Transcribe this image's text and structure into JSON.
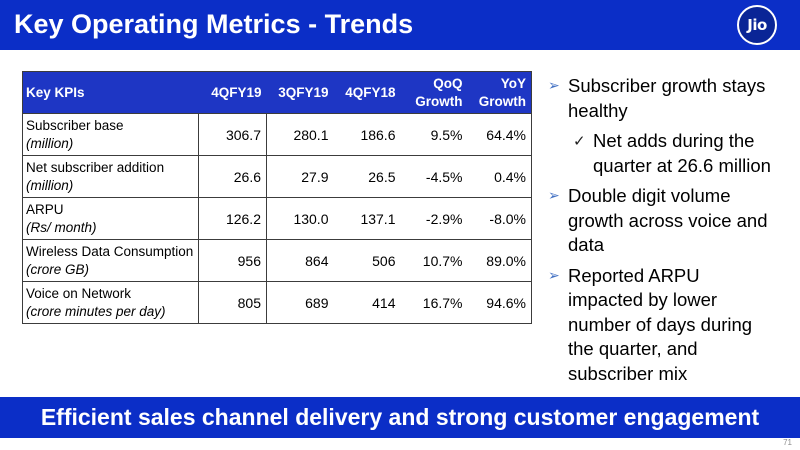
{
  "header": {
    "title": "Key Operating Metrics - Trends",
    "logo_text": "Jio"
  },
  "table": {
    "columns": [
      "Key KPIs",
      "4QFY19",
      "3QFY19",
      "4QFY18",
      "QoQ Growth",
      "YoY Growth"
    ],
    "rows": [
      {
        "kpi": "Subscriber base",
        "unit": "(million)",
        "values": [
          "306.7",
          "280.1",
          "186.6",
          "9.5%",
          "64.4%"
        ]
      },
      {
        "kpi": "Net subscriber addition",
        "unit": "(million)",
        "values": [
          "26.6",
          "27.9",
          "26.5",
          "-4.5%",
          "0.4%"
        ]
      },
      {
        "kpi": "ARPU",
        "unit": "(Rs/ month)",
        "values": [
          "126.2",
          "130.0",
          "137.1",
          "-2.9%",
          "-8.0%"
        ]
      },
      {
        "kpi": "Wireless Data Consumption",
        "unit": "(crore GB)",
        "values": [
          "956",
          "864",
          "506",
          "10.7%",
          "89.0%"
        ]
      },
      {
        "kpi": "Voice on Network",
        "unit": "(crore minutes per day)",
        "values": [
          "805",
          "689",
          "414",
          "16.7%",
          "94.6%"
        ]
      }
    ]
  },
  "bullets": [
    {
      "level": 1,
      "icon": "arrow-bullet-icon",
      "text": "Subscriber growth stays healthy"
    },
    {
      "level": 2,
      "icon": "check-bullet-icon",
      "text": "Net adds during the quarter at 26.6 million"
    },
    {
      "level": 1,
      "icon": "arrow-bullet-icon",
      "text": "Double digit volume growth across voice and data"
    },
    {
      "level": 1,
      "icon": "arrow-bullet-icon",
      "text": "Reported ARPU impacted by lower number of days during the quarter, and subscriber mix"
    }
  ],
  "footer": {
    "banner": "Efficient sales channel delivery and strong customer engagement",
    "page_number": "71"
  },
  "colors": {
    "brand_blue": "#0b2ec7",
    "table_header_blue": "#1e36c4",
    "arrow_bullet": "#4472c4",
    "check_bullet": "#1f1f1f"
  }
}
